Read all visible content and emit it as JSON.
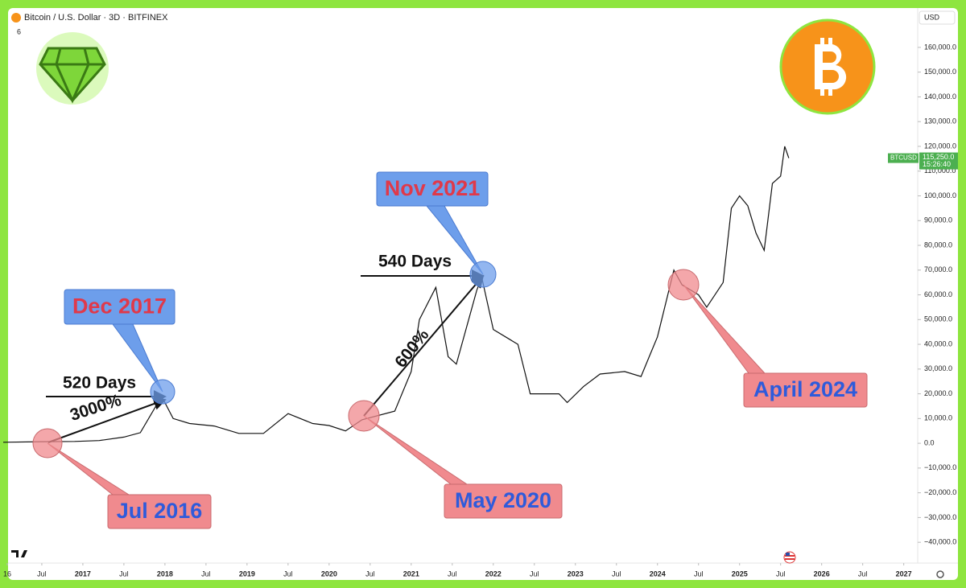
{
  "chart_data": {
    "type": "line",
    "title": "Bitcoin / U.S. Dollar · 3D · BITFINEX",
    "currency": "USD",
    "indicator_count": "6",
    "series": [
      {
        "name": "BTCUSD",
        "color": "#111111",
        "x": [
          2016.03,
          2016.5,
          2016.9,
          2017.2,
          2017.5,
          2017.7,
          2017.96,
          2018.1,
          2018.3,
          2018.6,
          2018.9,
          2019.2,
          2019.5,
          2019.8,
          2020.0,
          2020.2,
          2020.4,
          2020.8,
          2021.0,
          2021.1,
          2021.3,
          2021.45,
          2021.55,
          2021.8,
          2021.86,
          2022.0,
          2022.3,
          2022.45,
          2022.8,
          2022.9,
          2023.1,
          2023.3,
          2023.6,
          2023.8,
          2023.9,
          2024.0,
          2024.2,
          2024.3,
          2024.5,
          2024.6,
          2024.8,
          2024.9,
          2025.0,
          2025.1,
          2025.2,
          2025.3,
          2025.4,
          2025.5,
          2025.55,
          2025.6
        ],
        "values": [
          430,
          650,
          750,
          1100,
          2500,
          4300,
          19000,
          10000,
          8000,
          7000,
          4000,
          4000,
          12000,
          8000,
          7200,
          5000,
          9500,
          13000,
          29000,
          50000,
          63000,
          35000,
          32000,
          62000,
          67000,
          46000,
          40000,
          20000,
          20000,
          16500,
          23000,
          28000,
          29000,
          27000,
          35000,
          43000,
          70000,
          64000,
          60000,
          55000,
          65000,
          95000,
          100000,
          96000,
          85000,
          78000,
          105000,
          108000,
          120000,
          115250
        ]
      }
    ],
    "last_price": {
      "label": "BTCUSD",
      "value": 115250,
      "value_label": "115,250.0",
      "time": "15:26:40"
    },
    "xlim": [
      2016.03,
      2027.17
    ],
    "xticks": [
      {
        "value": 2016,
        "label": "16"
      },
      {
        "value": 2016.5,
        "label": "Jul"
      },
      2017,
      {
        "value": 2017.5,
        "label": "Jul"
      },
      2018,
      {
        "value": 2018.5,
        "label": "Jul"
      },
      2019,
      {
        "value": 2019.5,
        "label": "Jul"
      },
      2020,
      {
        "value": 2020.5,
        "label": "Jul"
      },
      2021,
      {
        "value": 2021.5,
        "label": "Jul"
      },
      2022,
      {
        "value": 2022.5,
        "label": "Jul"
      },
      2023,
      {
        "value": 2023.5,
        "label": "Jul"
      },
      2024,
      {
        "value": 2024.5,
        "label": "Jul"
      },
      2025,
      {
        "value": 2025.5,
        "label": "Jul"
      },
      2026,
      {
        "value": 2026.5,
        "label": "Jul"
      },
      2027
    ],
    "ylim": [
      -48400,
      175900
    ],
    "yticks": [
      {
        "value": 160000,
        "label": "160,000.0"
      },
      {
        "value": 150000,
        "label": "150,000.0"
      },
      {
        "value": 140000,
        "label": "140,000.0"
      },
      {
        "value": 130000,
        "label": "130,000.0"
      },
      {
        "value": 120000,
        "label": "120,000.0"
      },
      {
        "value": 110000,
        "label": "110,000.0"
      },
      {
        "value": 100000,
        "label": "100,000.0"
      },
      {
        "value": 90000,
        "label": "90,000.0"
      },
      {
        "value": 80000,
        "label": "80,000.0"
      },
      {
        "value": 70000,
        "label": "70,000.0"
      },
      {
        "value": 60000,
        "label": "60,000.0"
      },
      {
        "value": 50000,
        "label": "50,000.0"
      },
      {
        "value": 40000,
        "label": "40,000.0"
      },
      {
        "value": 30000,
        "label": "30,000.0"
      },
      {
        "value": 20000,
        "label": "20,000.0"
      },
      {
        "value": 10000,
        "label": "10,000.0"
      },
      {
        "value": 0,
        "label": "0.0"
      },
      {
        "value": -10000,
        "label": "−10,000.0"
      },
      {
        "value": -20000,
        "label": "−20,000.0"
      },
      {
        "value": -30000,
        "label": "−30,000.0"
      },
      {
        "value": -40000,
        "label": "−40,000.0"
      }
    ],
    "annotations": {
      "peaks": [
        "Dec 2017",
        "Nov 2021"
      ],
      "bottoms": [
        "Jul 2016",
        "May 2020",
        "April 2024"
      ],
      "durations": [
        "520 Days",
        "540 Days"
      ],
      "gains": [
        "3000%",
        "600%"
      ]
    }
  }
}
